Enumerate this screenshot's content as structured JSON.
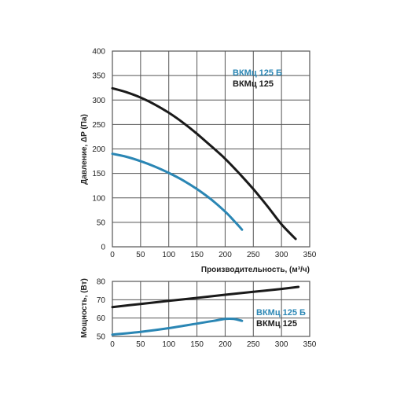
{
  "chart_data": [
    {
      "type": "line",
      "xlabel": "Производительность, (м³/ч)",
      "ylabel": "Давление, ΔP (Па)",
      "xlim": [
        0,
        350
      ],
      "ylim": [
        0,
        400
      ],
      "x_ticks": [
        "0",
        "50",
        "100",
        "150",
        "200",
        "250",
        "300",
        "350"
      ],
      "y_ticks": [
        "0",
        "50",
        "100",
        "150",
        "200",
        "250",
        "300",
        "350",
        "400"
      ],
      "grid": true,
      "legend_position": "top-right",
      "series": [
        {
          "name": "ВКМц 125 Б",
          "color": "#2a86b4",
          "x": [
            0,
            25,
            50,
            75,
            100,
            125,
            150,
            175,
            200,
            215,
            230
          ],
          "y": [
            190,
            184,
            175,
            164,
            151,
            136,
            118,
            97,
            72,
            54,
            35
          ]
        },
        {
          "name": "ВКМц 125",
          "color": "#1a1a1a",
          "x": [
            0,
            25,
            50,
            75,
            100,
            125,
            150,
            175,
            200,
            225,
            250,
            275,
            300,
            325
          ],
          "y": [
            324,
            316,
            305,
            291,
            274,
            254,
            231,
            206,
            180,
            150,
            118,
            83,
            46,
            16
          ]
        }
      ]
    },
    {
      "type": "line",
      "xlabel": "",
      "ylabel": "Мощность, (Вт)",
      "xlim": [
        0,
        350
      ],
      "ylim": [
        50,
        80
      ],
      "x_ticks": [
        "0",
        "50",
        "100",
        "150",
        "200",
        "250",
        "300",
        "350"
      ],
      "y_ticks": [
        "50",
        "60",
        "70",
        "80"
      ],
      "grid": true,
      "legend_position": "bottom-right",
      "series": [
        {
          "name": "ВКМц 125 Б",
          "color": "#2a86b4",
          "x": [
            0,
            50,
            100,
            150,
            180,
            200,
            215,
            230
          ],
          "y": [
            51,
            52.5,
            54.5,
            57,
            58.5,
            59.5,
            59.5,
            58.5
          ]
        },
        {
          "name": "ВКМц 125",
          "color": "#1a1a1a",
          "x": [
            0,
            50,
            100,
            150,
            200,
            250,
            300,
            330
          ],
          "y": [
            66,
            67.7,
            69.4,
            71,
            72.7,
            74.3,
            75.9,
            77
          ]
        }
      ]
    }
  ]
}
